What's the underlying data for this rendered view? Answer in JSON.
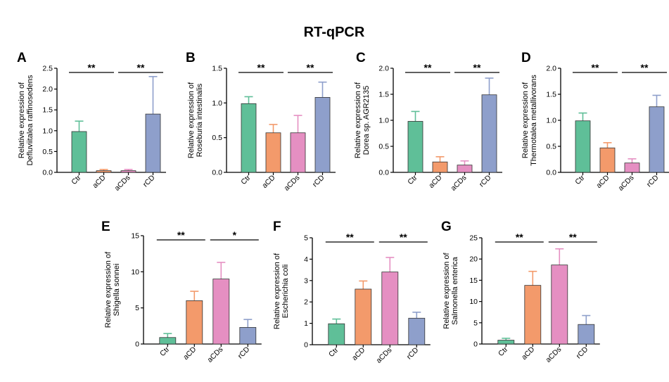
{
  "title": "RT-qPCR",
  "colors": {
    "Ctr": "#5fbf98",
    "aCD": "#f39a6b",
    "aCDs": "#e58fc2",
    "rCD": "#8e9fcb"
  },
  "chart_data": [
    {
      "panel": "A",
      "type": "bar",
      "ylabel": [
        "Relative expression of",
        "Defluviitalea raffinosedens"
      ],
      "categories": [
        "Ctr",
        "aCD",
        "aCDs",
        "rCD"
      ],
      "values": [
        0.98,
        0.04,
        0.04,
        1.4
      ],
      "errors": [
        0.25,
        0.03,
        0.03,
        0.9
      ],
      "ylim": [
        0,
        2.5
      ],
      "yticks": [
        "0.0",
        "0.5",
        "1.0",
        "1.5",
        "2.0",
        "2.5"
      ],
      "significance": [
        {
          "from": 0,
          "to": 1,
          "label": "**"
        },
        {
          "from": 2,
          "to": 3,
          "label": "**"
        }
      ]
    },
    {
      "panel": "B",
      "type": "bar",
      "ylabel": [
        "Relative expression of",
        "Roseburia intestinalis"
      ],
      "categories": [
        "Ctr",
        "aCD",
        "aCDs",
        "rCD"
      ],
      "values": [
        0.99,
        0.57,
        0.57,
        1.08
      ],
      "errors": [
        0.1,
        0.12,
        0.25,
        0.22
      ],
      "ylim": [
        0,
        1.5
      ],
      "yticks": [
        "0.0",
        "0.5",
        "1.0",
        "1.5"
      ],
      "significance": [
        {
          "from": 0,
          "to": 1,
          "label": "**"
        },
        {
          "from": 2,
          "to": 3,
          "label": "**"
        }
      ]
    },
    {
      "panel": "C",
      "type": "bar",
      "ylabel": [
        "Relative expression of",
        "Dorea sp. AGR2135"
      ],
      "categories": [
        "Ctr",
        "aCD",
        "aCDs",
        "rCD"
      ],
      "values": [
        0.98,
        0.2,
        0.14,
        1.49
      ],
      "errors": [
        0.19,
        0.1,
        0.08,
        0.32
      ],
      "ylim": [
        0,
        2.0
      ],
      "yticks": [
        "0.0",
        "0.5",
        "1.0",
        "1.5",
        "2.0"
      ],
      "significance": [
        {
          "from": 0,
          "to": 1,
          "label": "**"
        },
        {
          "from": 2,
          "to": 3,
          "label": "**"
        }
      ]
    },
    {
      "panel": "D",
      "type": "bar",
      "ylabel": [
        "Relative expression of",
        "Thermotalea metallivorans"
      ],
      "categories": [
        "Ctr",
        "aCD",
        "aCDs",
        "rCD"
      ],
      "values": [
        0.99,
        0.47,
        0.18,
        1.26
      ],
      "errors": [
        0.15,
        0.1,
        0.08,
        0.22
      ],
      "ylim": [
        0,
        2.0
      ],
      "yticks": [
        "0.0",
        "0.5",
        "1.0",
        "1.5",
        "2.0"
      ],
      "significance": [
        {
          "from": 0,
          "to": 1,
          "label": "**"
        },
        {
          "from": 2,
          "to": 3,
          "label": "**"
        }
      ]
    },
    {
      "panel": "E",
      "type": "bar",
      "ylabel": [
        "Relative expression of",
        "Shigella sonnei"
      ],
      "categories": [
        "Ctr",
        "aCD",
        "aCDs",
        "rCD"
      ],
      "values": [
        0.9,
        6.0,
        9.0,
        2.3
      ],
      "errors": [
        0.55,
        1.3,
        2.3,
        1.1
      ],
      "ylim": [
        0,
        15
      ],
      "yticks": [
        "0",
        "5",
        "10",
        "15"
      ],
      "significance": [
        {
          "from": 0,
          "to": 1,
          "label": "**"
        },
        {
          "from": 2,
          "to": 3,
          "label": "*"
        }
      ]
    },
    {
      "panel": "F",
      "type": "bar",
      "ylabel": [
        "Relative expression of",
        "Escherichia coli"
      ],
      "categories": [
        "Ctr",
        "aCD",
        "aCDs",
        "rCD"
      ],
      "values": [
        0.98,
        2.6,
        3.4,
        1.24
      ],
      "errors": [
        0.22,
        0.38,
        0.68,
        0.28
      ],
      "ylim": [
        0,
        5
      ],
      "yticks": [
        "0",
        "1",
        "2",
        "3",
        "4",
        "5"
      ],
      "significance": [
        {
          "from": 0,
          "to": 1,
          "label": "**"
        },
        {
          "from": 2,
          "to": 3,
          "label": "**"
        }
      ]
    },
    {
      "panel": "G",
      "type": "bar",
      "ylabel": [
        "Relative expression of",
        "Salmonella enterica"
      ],
      "categories": [
        "Ctr",
        "aCD",
        "aCDs",
        "rCD"
      ],
      "values": [
        0.9,
        13.8,
        18.6,
        4.6
      ],
      "errors": [
        0.45,
        3.3,
        3.8,
        2.1
      ],
      "ylim": [
        0,
        25
      ],
      "yticks": [
        "0",
        "5",
        "10",
        "15",
        "20",
        "25"
      ],
      "significance": [
        {
          "from": 0,
          "to": 1,
          "label": "**"
        },
        {
          "from": 2,
          "to": 3,
          "label": "**"
        }
      ]
    }
  ]
}
